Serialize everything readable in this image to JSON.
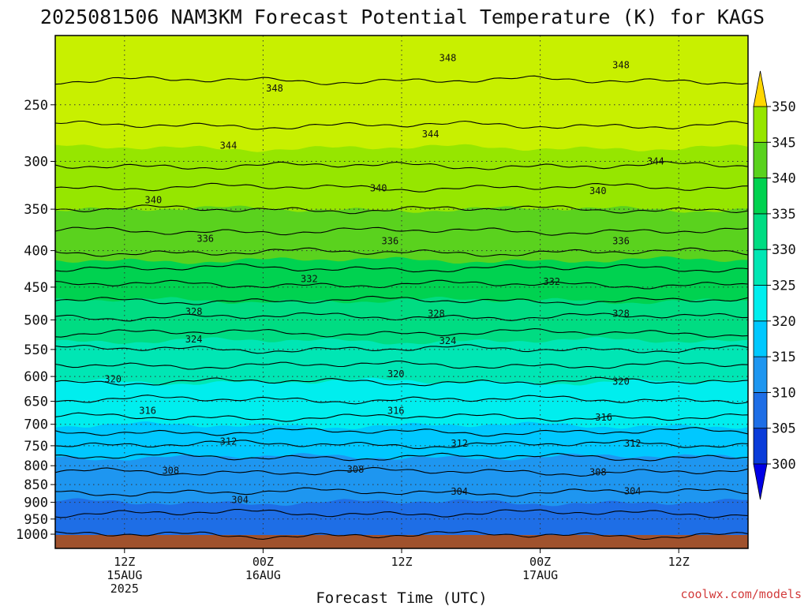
{
  "title": "2025081506 NAM3KM Forecast Potential Temperature (K) for KAGS",
  "credit": "coolwx.com/models",
  "colors": {
    "ground": "#a0522d",
    "bands": [
      "#0000e6",
      "#0a3cd9",
      "#1e6ee6",
      "#1e96f0",
      "#00c8ff",
      "#00eeee",
      "#00e6b4",
      "#00dc82",
      "#00d250",
      "#5ad21e",
      "#96e600",
      "#c8f000",
      "#f0f500",
      "#ffd700"
    ]
  },
  "chart_data": {
    "type": "heatmap",
    "title": "2025081506 NAM3KM Forecast Potential Temperature (K) for KAGS",
    "xlabel": "Forecast Time (UTC)",
    "ylabel": "",
    "y_scale": "log-pressure",
    "y_reversed": true,
    "ylim_hPa": [
      1000,
      200
    ],
    "yticks": [
      250,
      300,
      350,
      400,
      450,
      500,
      550,
      600,
      650,
      700,
      750,
      800,
      850,
      900,
      950,
      1000
    ],
    "xlim_hours": [
      0,
      60
    ],
    "xticks": [
      {
        "hour": 6,
        "lines": [
          "12Z",
          "15AUG",
          "2025"
        ]
      },
      {
        "hour": 18,
        "lines": [
          "00Z",
          "16AUG"
        ]
      },
      {
        "hour": 30,
        "lines": [
          "12Z"
        ]
      },
      {
        "hour": 42,
        "lines": [
          "00Z",
          "17AUG"
        ]
      },
      {
        "hour": 54,
        "lines": [
          "12Z"
        ]
      }
    ],
    "grid": "dotted",
    "colorbar": {
      "levels": [
        300,
        305,
        310,
        315,
        320,
        325,
        330,
        335,
        340,
        345,
        350
      ],
      "extend": "both",
      "placement": "right"
    },
    "contour_interval": 2,
    "contour_labels": [
      {
        "value": 348,
        "hour": 34,
        "pressure": 215
      },
      {
        "value": 348,
        "hour": 49,
        "pressure": 220
      },
      {
        "value": 348,
        "hour": 19,
        "pressure": 237
      },
      {
        "value": 344,
        "hour": 32.5,
        "pressure": 275
      },
      {
        "value": 344,
        "hour": 15,
        "pressure": 285
      },
      {
        "value": 344,
        "hour": 52,
        "pressure": 300
      },
      {
        "value": 340,
        "hour": 28,
        "pressure": 327
      },
      {
        "value": 340,
        "hour": 47,
        "pressure": 330
      },
      {
        "value": 340,
        "hour": 8.5,
        "pressure": 340
      },
      {
        "value": 336,
        "hour": 13,
        "pressure": 385
      },
      {
        "value": 336,
        "hour": 29,
        "pressure": 388
      },
      {
        "value": 336,
        "hour": 49,
        "pressure": 388
      },
      {
        "value": 332,
        "hour": 22,
        "pressure": 438
      },
      {
        "value": 332,
        "hour": 43,
        "pressure": 442
      },
      {
        "value": 328,
        "hour": 12,
        "pressure": 487
      },
      {
        "value": 328,
        "hour": 33,
        "pressure": 490
      },
      {
        "value": 328,
        "hour": 49,
        "pressure": 490
      },
      {
        "value": 324,
        "hour": 12,
        "pressure": 532
      },
      {
        "value": 324,
        "hour": 34,
        "pressure": 535
      },
      {
        "value": 320,
        "hour": 5,
        "pressure": 605
      },
      {
        "value": 320,
        "hour": 29.5,
        "pressure": 595
      },
      {
        "value": 320,
        "hour": 49,
        "pressure": 610
      },
      {
        "value": 316,
        "hour": 8,
        "pressure": 670
      },
      {
        "value": 316,
        "hour": 29.5,
        "pressure": 670
      },
      {
        "value": 316,
        "hour": 47.5,
        "pressure": 685
      },
      {
        "value": 312,
        "hour": 15,
        "pressure": 740
      },
      {
        "value": 312,
        "hour": 35,
        "pressure": 745
      },
      {
        "value": 312,
        "hour": 50,
        "pressure": 745
      },
      {
        "value": 308,
        "hour": 10,
        "pressure": 813
      },
      {
        "value": 308,
        "hour": 26,
        "pressure": 810
      },
      {
        "value": 308,
        "hour": 47,
        "pressure": 817
      },
      {
        "value": 304,
        "hour": 16,
        "pressure": 893
      },
      {
        "value": 304,
        "hour": 35,
        "pressure": 870
      },
      {
        "value": 304,
        "hour": 50,
        "pressure": 868
      }
    ]
  }
}
